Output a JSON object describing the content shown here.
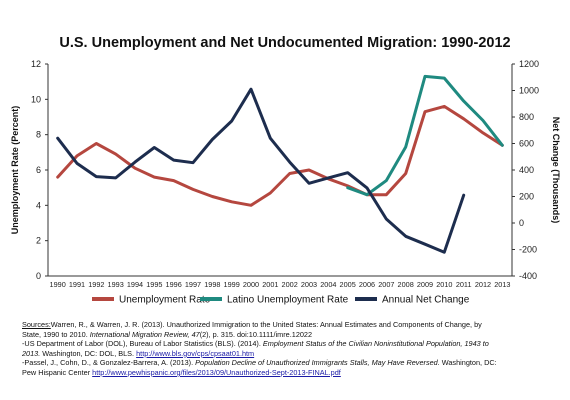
{
  "chart_data": {
    "type": "line",
    "title": "U.S. Unemployment and Net Undocumented Migration: 1990-2012",
    "ylabel_left": "Unemployment Rate (Percent)",
    "ylabel_right": "Net Change (Thousands)",
    "ylim_left": [
      0,
      12
    ],
    "ylim_right": [
      -400,
      1200
    ],
    "yticks_left": [
      "0",
      "2",
      "4",
      "6",
      "8",
      "10",
      "12"
    ],
    "yticks_right": [
      "-400",
      "-200",
      "0",
      "200",
      "400",
      "600",
      "800",
      "1000",
      "1200"
    ],
    "categories": [
      "1990",
      "1991",
      "1992",
      "1993",
      "1994",
      "1995",
      "1996",
      "1997",
      "1998",
      "1999",
      "2000",
      "2001",
      "2002",
      "2003",
      "2004",
      "2005",
      "2006",
      "2007",
      "2008",
      "2009",
      "2010",
      "2011",
      "2012",
      "2013"
    ],
    "grid": false,
    "legend_position": "bottom",
    "series": [
      {
        "name": "Unemployment Rate",
        "axis": "left",
        "color": "#b5473f",
        "values": [
          5.6,
          6.8,
          7.5,
          6.9,
          6.1,
          5.6,
          5.4,
          4.9,
          4.5,
          4.2,
          4.0,
          4.7,
          5.8,
          6.0,
          5.5,
          5.1,
          4.6,
          4.6,
          5.8,
          9.3,
          9.6,
          8.9,
          8.1,
          7.4
        ]
      },
      {
        "name": "Latino Unemployment Rate",
        "axis": "left",
        "color": "#1f8a80",
        "values": [
          null,
          null,
          null,
          null,
          null,
          null,
          null,
          null,
          null,
          null,
          null,
          null,
          null,
          null,
          null,
          5.0,
          4.6,
          5.4,
          7.3,
          11.3,
          11.2,
          9.9,
          8.8,
          7.4
        ]
      },
      {
        "name": "Annual Net Change",
        "axis": "right",
        "color": "#1d2d4e",
        "values": [
          640,
          450,
          350,
          340,
          460,
          570,
          475,
          455,
          630,
          770,
          1010,
          640,
          460,
          300,
          340,
          380,
          265,
          30,
          -100,
          -160,
          -220,
          210,
          null,
          null
        ]
      }
    ]
  },
  "sources": {
    "line1_label": "Sources:",
    "line1_text": "Warren, R., & Warren, J. R. (2013). Unauthorized Immigration to the United States: Annual Estimates and Components of Change, by",
    "line2_pre": "State, 1990 to 2010. ",
    "line2_italic": "International Migration Review, 47",
    "line2_post": "(2), p. 315. doi:10.1111/imre.12022",
    "line3_pre": "-US Department of Labor (DOL), Bureau of Labor Statistics (BLS). (2014). ",
    "line3_italic": "Employment Status of the Civilian Noninstitutional Population, 1943 to",
    "line4_italic": "2013.",
    "line4_pre": " Washington, DC: DOL, BLS. ",
    "line4_link": "http://www.bls.gov/cps/cpsaat01.htm",
    "line5_pre": "-Passel, J., Cohn, D., & Gonzalez-Barrera, A. (2013). ",
    "line5_italic": "Population Decline of Unauthorized Immigrants Stalls, May Have Reversed.",
    "line5_post": " Washington, DC:",
    "line6_pre": "Pew Hispanic Center ",
    "line6_link": "http://www.pewhispanic.org/files/2013/09/Unauthorized-Sept-2013-FINAL.pdf"
  }
}
